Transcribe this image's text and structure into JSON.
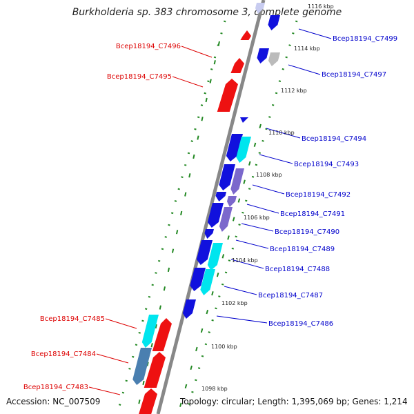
{
  "title": "Burkholderia sp. 383 chromosome 3, complete genome",
  "footer": {
    "accession": "Accession: NC_007509",
    "topology": "Topology: circular; Length: 1,395,069 bp; Genes: 1,214"
  },
  "ticks": [
    {
      "label": "1116 kbp",
      "faded": true
    },
    {
      "label": "1114 kbp"
    },
    {
      "label": "1112 kbp"
    },
    {
      "label": "1110 kbp"
    },
    {
      "label": "1108 kbp"
    },
    {
      "label": "1106 kbp"
    },
    {
      "label": "1104 kbp"
    },
    {
      "label": "1102 kbp"
    },
    {
      "label": "1100 kbp"
    },
    {
      "label": "1098 kbp"
    }
  ],
  "genes_reverse": [
    {
      "id": "Bcep18194_C7496",
      "color": "#dd0000"
    },
    {
      "id": "Bcep18194_C7495",
      "color": "#dd0000"
    },
    {
      "id": "Bcep18194_C7485",
      "color": "#dd0000"
    },
    {
      "id": "Bcep18194_C7484",
      "color": "#dd0000"
    },
    {
      "id": "Bcep18194_C7483",
      "color": "#dd0000"
    }
  ],
  "genes_forward": [
    {
      "id": "Bcep18194_C7499",
      "color": "#0000cc"
    },
    {
      "id": "Bcep18194_C7497",
      "color": "#0000cc"
    },
    {
      "id": "Bcep18194_C7494",
      "color": "#0000cc"
    },
    {
      "id": "Bcep18194_C7493",
      "color": "#0000cc"
    },
    {
      "id": "Bcep18194_C7492",
      "color": "#0000cc"
    },
    {
      "id": "Bcep18194_C7491",
      "color": "#0000cc"
    },
    {
      "id": "Bcep18194_C7490",
      "color": "#0000cc"
    },
    {
      "id": "Bcep18194_C7489",
      "color": "#0000cc"
    },
    {
      "id": "Bcep18194_C7488",
      "color": "#0000cc"
    },
    {
      "id": "Bcep18194_C7487",
      "color": "#0000cc"
    },
    {
      "id": "Bcep18194_C7486",
      "color": "#0000cc"
    }
  ],
  "colors": {
    "reverse_cds": "#ee1111",
    "forward_cds": "#1111dd",
    "cog_cyan": "#00e5ee",
    "cog_purple": "#7b68cc",
    "cog_steelblue": "#4a7fb0",
    "cog_grey": "#bbbbbb",
    "cog_lavender": "#c8ccf0",
    "backbone": "#888888",
    "dotted_track": "#228822"
  }
}
